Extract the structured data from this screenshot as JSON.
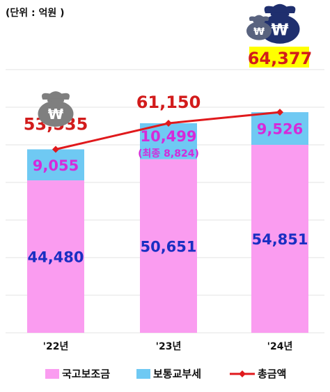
{
  "unit_label": "(단위 : 억원 )",
  "colors": {
    "subsidy": "#fa9cf0",
    "tax": "#6fc9f3",
    "total_line": "#e0191c",
    "subsidy_text": "#1a2fc2",
    "tax_text": "#d52ad9",
    "total_text": "#d21b1b",
    "highlight": "#ffff00",
    "grid": "#e3e3e3",
    "icon_gray": "#7f7f7f",
    "icon_navy": "#1f2f6e"
  },
  "chart_data": {
    "type": "bar",
    "stacked": true,
    "categories": [
      "'22년",
      "'23년",
      "'24년"
    ],
    "series": [
      {
        "name": "국고보조금",
        "values": [
          44480,
          50651,
          54851
        ]
      },
      {
        "name": "보통교부세",
        "values": [
          9055,
          10499,
          9526
        ]
      }
    ],
    "total_series": {
      "name": "총금액",
      "values": [
        53535,
        61150,
        64377
      ],
      "type": "line"
    },
    "value_labels": {
      "subsidy": [
        "44,480",
        "50,651",
        "54,851"
      ],
      "tax": [
        "9,055",
        "10,499",
        "9,526"
      ],
      "total": [
        "53,535",
        "61,150",
        "64,377"
      ]
    },
    "annotation": "(최종 8,824)",
    "icons": [
      "won-money-bag-icon",
      "won-money-bag-icon"
    ],
    "ylim": [
      0,
      71000
    ],
    "grid": true,
    "legend": {
      "position": "bottom",
      "items": [
        "국고보조금",
        "보통교부세",
        "총금액"
      ]
    }
  }
}
